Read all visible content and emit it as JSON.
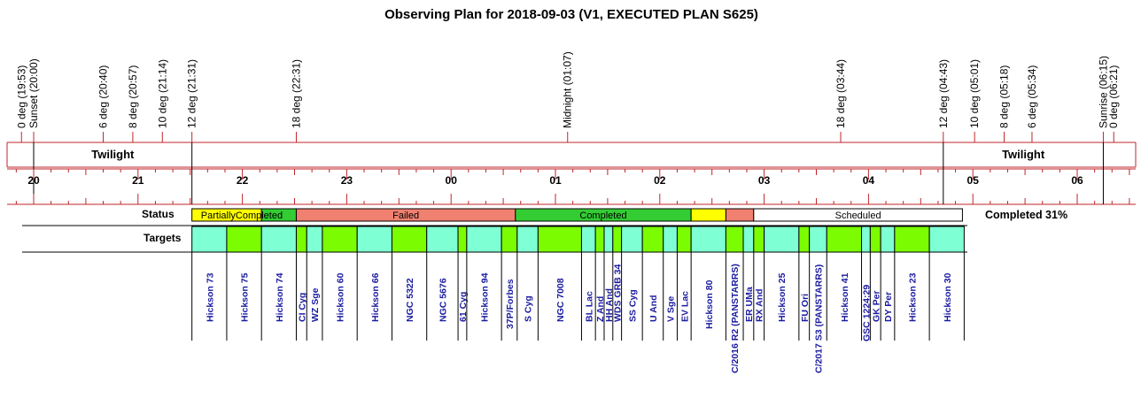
{
  "chart_data": {
    "type": "timeline",
    "title": "Observing Plan for 2018-09-03 (V1, EXECUTED PLAN S625)",
    "events": [
      {
        "label": "0 deg (19:53)",
        "time": "19:53"
      },
      {
        "label": "Sunset (20:00)",
        "time": "20:00"
      },
      {
        "label": "6 deg (20:40)",
        "time": "20:40"
      },
      {
        "label": "8 deg (20:57)",
        "time": "20:57"
      },
      {
        "label": "10 deg (21:14)",
        "time": "21:14"
      },
      {
        "label": "12 deg (21:31)",
        "time": "21:31"
      },
      {
        "label": "18 deg (22:31)",
        "time": "22:31"
      },
      {
        "label": "Midnight (01:07)",
        "time": "01:07"
      },
      {
        "label": "18 deg (03:44)",
        "time": "03:44"
      },
      {
        "label": "12 deg (04:43)",
        "time": "04:43"
      },
      {
        "label": "10 deg (05:01)",
        "time": "05:01"
      },
      {
        "label": "8 deg (05:18)",
        "time": "05:18"
      },
      {
        "label": "6 deg (05:34)",
        "time": "05:34"
      },
      {
        "label": "Sunrise (06:15)",
        "time": "06:15"
      },
      {
        "label": "0 deg (06:21)",
        "time": "06:21"
      }
    ],
    "twilight": [
      {
        "label": "Twilight",
        "start": "20:00",
        "end": "21:31"
      },
      {
        "label": "Twilight",
        "start": "04:43",
        "end": "06:15"
      }
    ],
    "hour_ticks": [
      "20",
      "21",
      "22",
      "23",
      "00",
      "01",
      "02",
      "03",
      "04",
      "05",
      "06"
    ],
    "status_label": "Status",
    "targets_label": "Targets",
    "status_segments": [
      {
        "label": "PartiallyCompleted",
        "start": "21:31",
        "end": "22:11",
        "color": "#ffff00"
      },
      {
        "label": "",
        "start": "22:11",
        "end": "22:31",
        "color": "#33cc33"
      },
      {
        "label": "Failed",
        "start": "22:31",
        "end": "00:37",
        "color": "#f08070"
      },
      {
        "label": "Completed",
        "start": "00:37",
        "end": "02:18",
        "color": "#33cc33"
      },
      {
        "label": "",
        "start": "02:18",
        "end": "02:38",
        "color": "#ffff00"
      },
      {
        "label": "",
        "start": "02:38",
        "end": "02:54",
        "color": "#f08070"
      },
      {
        "label": "Scheduled",
        "start": "02:54",
        "end": "04:54",
        "color": "#ffffff"
      }
    ],
    "completion_text": "Completed 31%",
    "targets": [
      {
        "name": "Hickson 73",
        "start": "21:31",
        "end": "21:51",
        "color": "#7fffd4"
      },
      {
        "name": "Hickson 75",
        "start": "21:51",
        "end": "22:11",
        "color": "#7cfc00"
      },
      {
        "name": "Hickson 74",
        "start": "22:11",
        "end": "22:31",
        "color": "#7fffd4"
      },
      {
        "name": "CI Cyg",
        "start": "22:31",
        "end": "22:37",
        "color": "#7cfc00"
      },
      {
        "name": "WZ Sge",
        "start": "22:37",
        "end": "22:46",
        "color": "#7fffd4"
      },
      {
        "name": "Hickson 60",
        "start": "22:46",
        "end": "23:06",
        "color": "#7cfc00"
      },
      {
        "name": "Hickson 66",
        "start": "23:06",
        "end": "23:26",
        "color": "#7fffd4"
      },
      {
        "name": "NGC 5322",
        "start": "23:26",
        "end": "23:46",
        "color": "#7cfc00"
      },
      {
        "name": "NGC 5676",
        "start": "23:46",
        "end": "00:04",
        "color": "#7fffd4"
      },
      {
        "name": "61 Cyg",
        "start": "00:04",
        "end": "00:09",
        "color": "#7cfc00"
      },
      {
        "name": "Hickson 94",
        "start": "00:09",
        "end": "00:29",
        "color": "#7fffd4"
      },
      {
        "name": "37P/Forbes",
        "start": "00:29",
        "end": "00:38",
        "color": "#7cfc00"
      },
      {
        "name": "S Cyg",
        "start": "00:38",
        "end": "00:50",
        "color": "#7fffd4"
      },
      {
        "name": "NGC 7008",
        "start": "00:50",
        "end": "01:15",
        "color": "#7cfc00"
      },
      {
        "name": "BL Lac",
        "start": "01:15",
        "end": "01:23",
        "color": "#7fffd4"
      },
      {
        "name": "Z And",
        "start": "01:23",
        "end": "01:28",
        "color": "#7cfc00"
      },
      {
        "name": "HH And",
        "start": "01:28",
        "end": "01:33",
        "color": "#7fffd4"
      },
      {
        "name": "WDS GRB 34",
        "start": "01:33",
        "end": "01:38",
        "color": "#7cfc00"
      },
      {
        "name": "SS Cyg",
        "start": "01:38",
        "end": "01:50",
        "color": "#7fffd4"
      },
      {
        "name": "U And",
        "start": "01:50",
        "end": "02:02",
        "color": "#7cfc00"
      },
      {
        "name": "V Sge",
        "start": "02:02",
        "end": "02:10",
        "color": "#7fffd4"
      },
      {
        "name": "EV Lac",
        "start": "02:10",
        "end": "02:18",
        "color": "#7cfc00"
      },
      {
        "name": "Hickson 80",
        "start": "02:18",
        "end": "02:38",
        "color": "#7fffd4"
      },
      {
        "name": "C/2016 R2 (PANSTARRS)",
        "start": "02:38",
        "end": "02:48",
        "color": "#7cfc00"
      },
      {
        "name": "ER UMa",
        "start": "02:48",
        "end": "02:54",
        "color": "#7fffd4"
      },
      {
        "name": "RX And",
        "start": "02:54",
        "end": "03:00",
        "color": "#7cfc00"
      },
      {
        "name": "Hickson 25",
        "start": "03:00",
        "end": "03:20",
        "color": "#7fffd4"
      },
      {
        "name": "FU Ori",
        "start": "03:20",
        "end": "03:26",
        "color": "#7cfc00"
      },
      {
        "name": "C/2017 S3 (PANSTARRS)",
        "start": "03:26",
        "end": "03:36",
        "color": "#7fffd4"
      },
      {
        "name": "Hickson 41",
        "start": "03:36",
        "end": "03:56",
        "color": "#7cfc00"
      },
      {
        "name": "GSC 1224:29",
        "start": "03:56",
        "end": "04:01",
        "color": "#7fffd4"
      },
      {
        "name": "GK Per",
        "start": "04:01",
        "end": "04:07",
        "color": "#7cfc00"
      },
      {
        "name": "DY Per",
        "start": "04:07",
        "end": "04:15",
        "color": "#7fffd4"
      },
      {
        "name": "Hickson 23",
        "start": "04:15",
        "end": "04:35",
        "color": "#7cfc00"
      },
      {
        "name": "Hickson 30",
        "start": "04:35",
        "end": "04:55",
        "color": "#7fffd4"
      }
    ],
    "colors": {
      "axis": "#c0262b",
      "target_label": "#1a1aa0",
      "completed": "#33cc33",
      "failed": "#f08070",
      "partial": "#ffff00",
      "scheduled": "#ffffff"
    }
  }
}
